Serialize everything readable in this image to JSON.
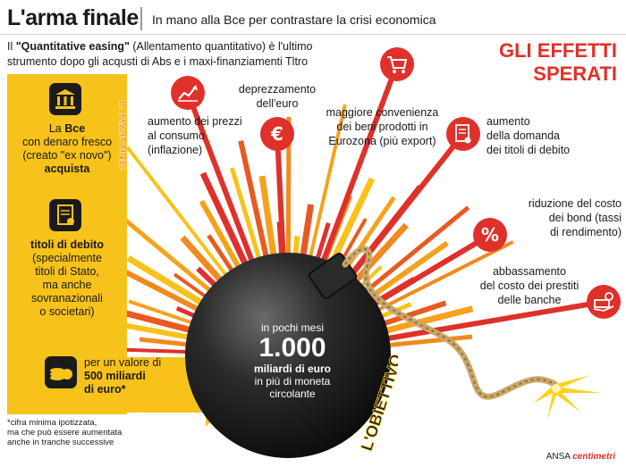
{
  "header": {
    "title": "L'arma finale",
    "subtitle": "In mano alla Bce per contrastare la crisi economica"
  },
  "intro": {
    "qe_label": "\"Quantitative easing\"",
    "line1_rest": " (Allentamento quantitativo) è l'ultimo",
    "line2": "strumento dopo gli acqusti di Abs e i maxi-finanziamenti Tltro",
    "prefix": "Il "
  },
  "effects_heading": {
    "line1": "GLI EFFETTI",
    "line2": "SPERATI"
  },
  "azione_label": "L'AZIONE",
  "obiettivo_label": "L'OBIETTIVO",
  "left_column": {
    "block1": {
      "l1a": "La ",
      "l1b": "Bce",
      "l2": "con denaro fresco",
      "l3": "(creato \"ex novo\")",
      "l4": "acquista"
    },
    "block2": {
      "l1": "titoli di debito",
      "l2": "(specialmente",
      "l3": "titoli di Stato,",
      "l4": "ma anche",
      "l5": "sovranazionali",
      "l6": "o societari)"
    },
    "block3": {
      "l1": "per un valore di",
      "l2": "500 miliardi",
      "l3": "di euro*"
    }
  },
  "bomb": {
    "l1": "in pochi mesi",
    "l2": "1.000",
    "l3": "miliardi di euro",
    "l4": "in più di moneta",
    "l5": "circolante"
  },
  "effects": [
    {
      "lines": [
        "aumento dei prezzi",
        "al consumo",
        "(inflazione)"
      ],
      "icon": "chart-up-icon"
    },
    {
      "lines": [
        "deprezzamento",
        "dell'euro"
      ],
      "icon": "euro-icon"
    },
    {
      "lines": [
        "maggiore convenienza",
        "dei beni prodotti in",
        "Eurozona (più export)"
      ],
      "icon": "shopping-cart-icon"
    },
    {
      "lines": [
        "aumento",
        "della domanda",
        "dei titoli di debito"
      ],
      "icon": "bond-certificate-icon"
    },
    {
      "lines": [
        "riduzione del costo",
        "dei bond (tassi",
        "di rendimento)"
      ],
      "icon": "percent-icon"
    },
    {
      "lines": [
        "abbassamento",
        "del costo dei prestiti",
        "delle banche"
      ],
      "icon": "loan-hand-icon"
    }
  ],
  "footnote": {
    "l1": "*cifra minima ipotizzata,",
    "l2": "ma che può essere aumentata",
    "l3": "anche in tranche successive"
  },
  "credit": {
    "agency": "ANSA",
    "brand": "centimetri"
  },
  "colors": {
    "accent_red": "#e0302a",
    "yellow": "#f7c21a",
    "orange": "#f08a1e",
    "bomb": "#222222"
  }
}
